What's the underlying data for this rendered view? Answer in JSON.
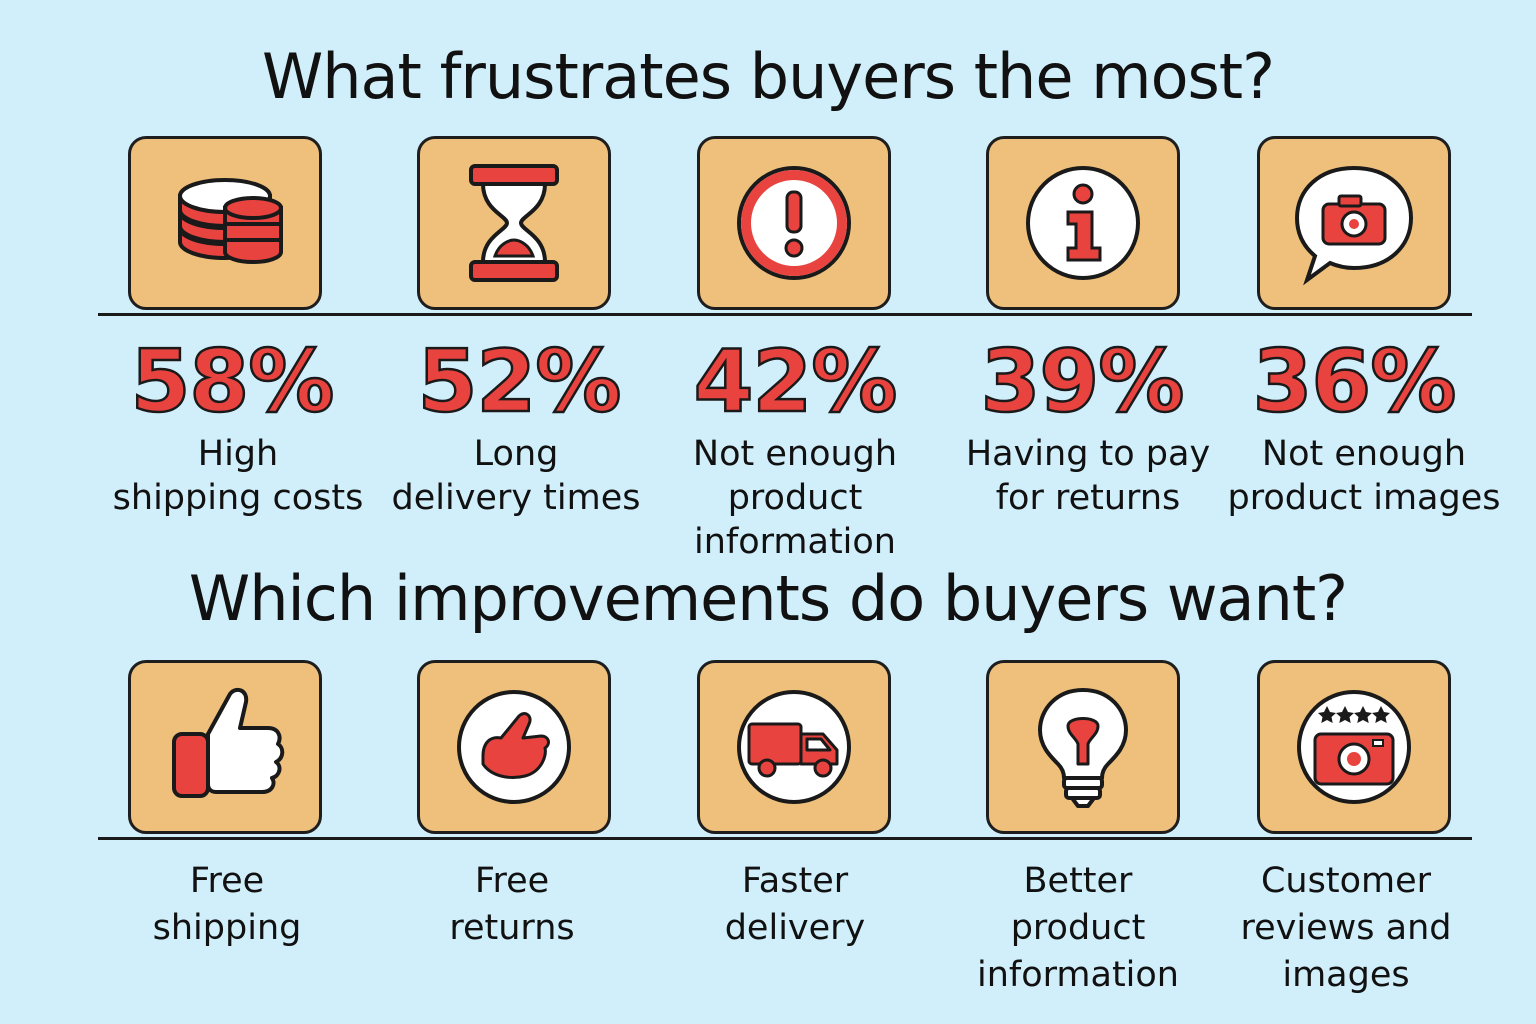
{
  "frustrations": {
    "title": "What frustrates buyers the most?",
    "items": [
      {
        "percent": "58%",
        "line1": "High",
        "line2": "shipping costs",
        "icon": "coin-stack-icon"
      },
      {
        "percent": "52%",
        "line1": "Long",
        "line2": "delivery times",
        "icon": "hourglass-icon"
      },
      {
        "percent": "42%",
        "line1": "Not enough",
        "line2": "product information",
        "icon": "exclamation-icon"
      },
      {
        "percent": "39%",
        "line1": "Having to pay",
        "line2": "for returns",
        "icon": "info-icon"
      },
      {
        "percent": "36%",
        "line1": "Not enough",
        "line2": "product images",
        "icon": "camera-speech-bubble-icon"
      }
    ]
  },
  "improvements": {
    "title": "Which improvements do buyers want?",
    "items": [
      {
        "line1": "Free",
        "line2": "shipping",
        "line3": "",
        "icon": "thumbs-up-icon"
      },
      {
        "line1": "Free",
        "line2": "returns",
        "line3": "",
        "icon": "thumbs-up-circle-icon"
      },
      {
        "line1": "Faster",
        "line2": "delivery",
        "line3": "",
        "icon": "delivery-truck-icon"
      },
      {
        "line1": "Better",
        "line2": "product",
        "line3": "information",
        "icon": "light-bulb-icon"
      },
      {
        "line1": "Customer",
        "line2": "reviews and",
        "line3": "images",
        "icon": "camera-rating-icon"
      }
    ]
  },
  "colors": {
    "background": "#d1effb",
    "tile": "#efc07b",
    "accent": "#e8433f",
    "ink": "#1a1a1a"
  }
}
